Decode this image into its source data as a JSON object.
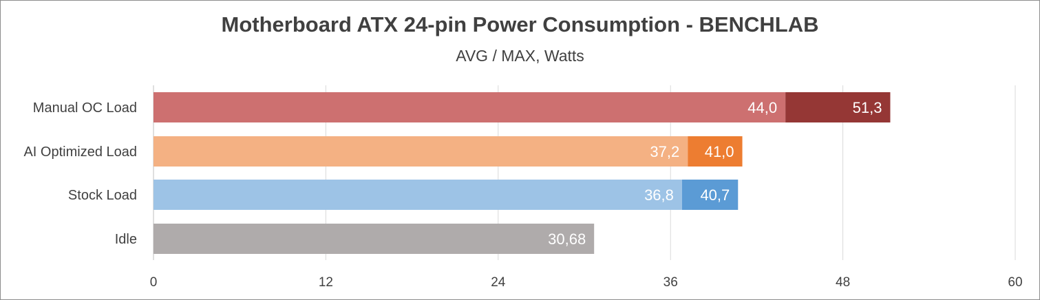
{
  "chart_data": {
    "type": "bar",
    "orientation": "horizontal",
    "title": "Motherboard ATX 24-pin Power Consumption - BENCHLAB",
    "subtitle": "AVG / MAX, Watts",
    "xlim": [
      0,
      60
    ],
    "x_ticks": [
      "0",
      "12",
      "24",
      "36",
      "48",
      "60"
    ],
    "grid": true,
    "categories": [
      "Manual OC Load",
      "AI Optimized Load",
      "Stock Load",
      "Idle"
    ],
    "bars": [
      {
        "category": "Manual OC Load",
        "avg": 44.0,
        "avg_label": "44,0",
        "avg_color": "#cd7070",
        "max": 51.3,
        "max_label": "51,3",
        "max_color": "#953735"
      },
      {
        "category": "AI Optimized Load",
        "avg": 37.2,
        "avg_label": "37,2",
        "avg_color": "#f4b183",
        "max": 41.0,
        "max_label": "41,0",
        "max_color": "#ed7d31"
      },
      {
        "category": "Stock Load",
        "avg": 36.8,
        "avg_label": "36,8",
        "avg_color": "#9dc3e6",
        "max": 40.7,
        "max_label": "40,7",
        "max_color": "#5b9bd5"
      },
      {
        "category": "Idle",
        "avg": 30.68,
        "avg_label": "30,68",
        "avg_color": "#afabab",
        "max": null,
        "max_label": "",
        "max_color": ""
      }
    ],
    "colors": {
      "grid": "#d9d9d9",
      "axis": "#bfbfbf"
    }
  }
}
